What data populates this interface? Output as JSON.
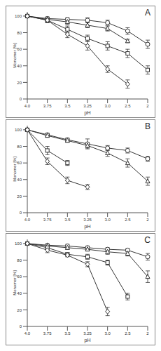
{
  "chart_data": [
    {
      "type": "line",
      "title": "A",
      "xlabel": "pH",
      "ylabel": "Monomer [%]",
      "categories": [
        "4.0",
        "3.75",
        "3.5",
        "3.25",
        "3.0",
        "2.5",
        "2"
      ],
      "ylim": [
        0,
        105
      ],
      "yticks": [
        0,
        20,
        40,
        60,
        80,
        100
      ],
      "series": [
        {
          "values": [
            100,
            97,
            96,
            95,
            92,
            82,
            66
          ],
          "errors": [
            1,
            2,
            2,
            3,
            3,
            4,
            5
          ],
          "marker": "circle",
          "color": "#333333"
        },
        {
          "values": [
            100,
            96,
            93,
            89,
            85,
            70,
            null
          ],
          "errors": [
            1,
            2,
            3,
            3,
            3,
            2,
            null
          ],
          "marker": "triangle",
          "color": "#333333"
        },
        {
          "values": [
            100,
            95,
            84,
            73,
            64,
            55,
            35
          ],
          "errors": [
            1,
            3,
            4,
            4,
            5,
            5,
            5
          ],
          "marker": "square",
          "color": "#333333"
        },
        {
          "values": [
            100,
            95,
            78,
            64,
            36,
            18,
            null
          ],
          "errors": [
            1,
            3,
            4,
            5,
            4,
            5,
            null
          ],
          "marker": "diamond",
          "color": "#333333"
        }
      ]
    },
    {
      "type": "line",
      "title": "B",
      "xlabel": "pH",
      "ylabel": "Monomer [%]",
      "categories": [
        "4.0",
        "3.75",
        "3.5",
        "3.25",
        "3.0",
        "2.5",
        "2"
      ],
      "ylim": [
        0,
        105
      ],
      "yticks": [
        0,
        20,
        40,
        60,
        80,
        100
      ],
      "series": [
        {
          "values": [
            100,
            94,
            88,
            83,
            78,
            75,
            65
          ],
          "errors": [
            1,
            2,
            2,
            6,
            3,
            3,
            3
          ],
          "marker": "circle",
          "color": "#333333"
        },
        {
          "values": [
            100,
            93,
            87,
            81,
            72,
            60,
            38
          ],
          "errors": [
            1,
            2,
            2,
            3,
            4,
            5,
            5
          ],
          "marker": "triangle",
          "color": "#333333"
        },
        {
          "values": [
            100,
            75,
            60,
            null,
            null,
            null,
            null
          ],
          "errors": [
            1,
            5,
            3,
            null,
            null,
            null,
            null
          ],
          "marker": "square",
          "color": "#333333"
        },
        {
          "values": [
            100,
            62,
            39,
            31,
            null,
            null,
            null
          ],
          "errors": [
            1,
            4,
            4,
            3,
            null,
            null,
            null
          ],
          "marker": "diamond",
          "color": "#333333"
        }
      ]
    },
    {
      "type": "line",
      "title": "C",
      "xlabel": "pH",
      "ylabel": "Monomer [%]",
      "categories": [
        "4.0",
        "3.75",
        "3.5",
        "3.25",
        "3.0",
        "2.5",
        "2"
      ],
      "ylim": [
        0,
        105
      ],
      "yticks": [
        0,
        20,
        40,
        60,
        80,
        100
      ],
      "series": [
        {
          "values": [
            100,
            98,
            97,
            95,
            93,
            92,
            84
          ],
          "errors": [
            1,
            1,
            2,
            2,
            2,
            2,
            4
          ],
          "marker": "circle",
          "color": "#333333"
        },
        {
          "values": [
            100,
            97,
            95,
            93,
            90,
            88,
            60
          ],
          "errors": [
            1,
            2,
            2,
            2,
            3,
            3,
            7
          ],
          "marker": "triangle",
          "color": "#333333"
        },
        {
          "values": [
            100,
            95,
            87,
            84,
            77,
            36,
            null
          ],
          "errors": [
            1,
            2,
            2,
            3,
            3,
            4,
            null
          ],
          "marker": "square",
          "color": "#333333"
        },
        {
          "values": [
            100,
            92,
            86,
            75,
            18,
            null,
            null
          ],
          "errors": [
            1,
            3,
            2,
            3,
            5,
            null,
            null
          ],
          "marker": "diamond",
          "color": "#333333"
        }
      ]
    }
  ]
}
